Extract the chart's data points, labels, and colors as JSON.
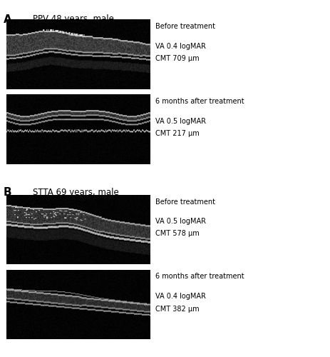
{
  "figure_width": 4.64,
  "figure_height": 5.0,
  "dpi": 100,
  "background_color": "#ffffff",
  "panel_A_label": "A",
  "panel_B_label": "B",
  "panel_A_title": "PPV 48 years, male",
  "panel_B_title": "STTA 69 years, male",
  "images": [
    {
      "panel": "A",
      "position": "before",
      "label1": "Before treatment",
      "label2": "VA 0.4 logMAR",
      "label3": "CMT 709 μm"
    },
    {
      "panel": "A",
      "position": "after",
      "label1": "6 months after treatment",
      "label2": "VA 0.5 logMAR",
      "label3": "CMT 217 μm"
    },
    {
      "panel": "B",
      "position": "before",
      "label1": "Before treatment",
      "label2": "VA 0.5 logMAR",
      "label3": "CMT 578 μm"
    },
    {
      "panel": "B",
      "position": "after",
      "label1": "6 months after treatment",
      "label2": "VA 0.4 logMAR",
      "label3": "CMT 382 μm"
    }
  ],
  "text_color": "#000000",
  "label_fontsize": 7.0,
  "title_fontsize": 8.5,
  "panel_label_fontsize": 11
}
